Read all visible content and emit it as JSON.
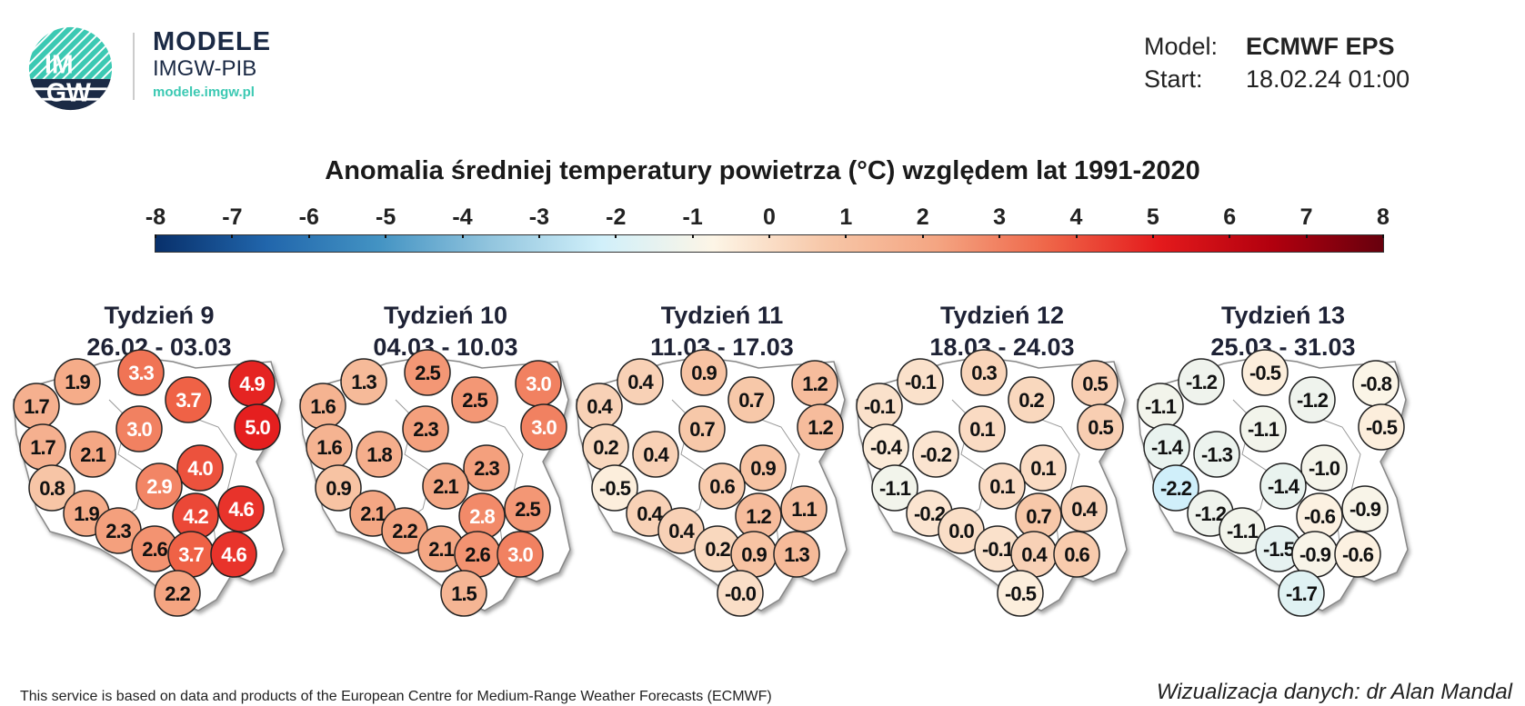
{
  "header": {
    "brand_title": "MODELE",
    "brand_subtitle": "IMGW-PIB",
    "brand_url": "modele.imgw.pl",
    "logo_text": "IMGW",
    "model_label": "Model:",
    "model_value": "ECMWF EPS",
    "start_label": "Start:",
    "start_value": "18.02.24 01:00"
  },
  "chart_data": {
    "type": "map-bubbles",
    "title": "Anomalia średniej temperatury powietrza (°C) względem lat 1991-2020",
    "colorbar": {
      "ticks": [
        "-8",
        "-7",
        "-6",
        "-5",
        "-4",
        "-3",
        "-2",
        "-1",
        "0",
        "1",
        "2",
        "3",
        "4",
        "5",
        "6",
        "7",
        "8"
      ],
      "range": [
        -8,
        8
      ],
      "colors": [
        "#08306b",
        "#2166ac",
        "#4393c3",
        "#92c5de",
        "#d1f0fa",
        "#fdf5e6",
        "#f7c7a8",
        "#f4a582",
        "#ef6548",
        "#e41a1c",
        "#b2000e",
        "#67000d"
      ]
    },
    "weeks": [
      {
        "name": "Tydzień 9",
        "dates": "26.02 - 03.03",
        "values": [
          "1.9",
          "3.3",
          "3.7",
          "4.9",
          "1.7",
          "5.0",
          "3.0",
          "1.7",
          "2.1",
          "4.0",
          "0.8",
          "2.9",
          "4.6",
          "4.2",
          "1.9",
          "2.3",
          "2.6",
          "3.7",
          "4.6",
          "2.2"
        ]
      },
      {
        "name": "Tydzień 10",
        "dates": "04.03 - 10.03",
        "values": [
          "1.3",
          "2.5",
          "2.5",
          "3.0",
          "1.6",
          "3.0",
          "2.3",
          "1.6",
          "1.8",
          "2.3",
          "0.9",
          "2.1",
          "2.5",
          "2.8",
          "2.1",
          "2.2",
          "2.1",
          "2.6",
          "3.0",
          "1.5"
        ]
      },
      {
        "name": "Tydzień 11",
        "dates": "11.03 - 17.03",
        "values": [
          "0.4",
          "0.9",
          "0.7",
          "1.2",
          "0.4",
          "1.2",
          "0.7",
          "0.2",
          "0.4",
          "0.9",
          "-0.5",
          "0.6",
          "1.1",
          "1.2",
          "0.4",
          "0.4",
          "0.2",
          "0.9",
          "1.3",
          "-0.0"
        ]
      },
      {
        "name": "Tydzień 12",
        "dates": "18.03 - 24.03",
        "values": [
          "-0.1",
          "0.3",
          "0.2",
          "0.5",
          "-0.1",
          "0.5",
          "0.1",
          "-0.4",
          "-0.2",
          "0.1",
          "-1.1",
          "0.1",
          "0.4",
          "0.7",
          "-0.2",
          "0.0",
          "-0.1",
          "0.4",
          "0.6",
          "-0.5"
        ]
      },
      {
        "name": "Tydzień 13",
        "dates": "25.03 - 31.03",
        "values": [
          "-1.2",
          "-0.5",
          "-1.2",
          "-0.8",
          "-1.1",
          "-0.5",
          "-1.1",
          "-1.4",
          "-1.3",
          "-1.0",
          "-2.2",
          "-1.4",
          "-0.9",
          "-0.6",
          "-1.2",
          "-1.1",
          "-1.5",
          "-0.9",
          "-0.6",
          "-1.7"
        ]
      }
    ]
  },
  "footer": {
    "source": "This service is based on data and products of the European Centre for Medium-Range Weather Forecasts (ECMWF)",
    "credit": "Wizualizacja danych: dr Alan Mandal"
  }
}
